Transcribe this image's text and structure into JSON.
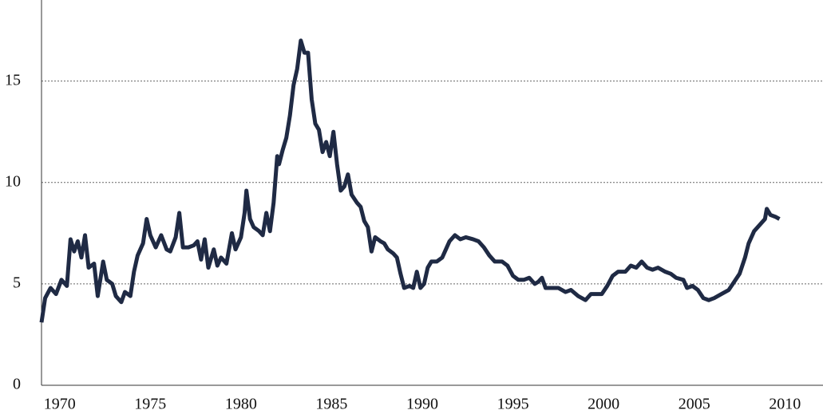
{
  "chart_data": {
    "type": "line",
    "x": [
      1969.0,
      1969.2,
      1969.5,
      1969.8,
      1970.1,
      1970.4,
      1970.6,
      1970.8,
      1971.0,
      1971.2,
      1971.4,
      1971.6,
      1971.9,
      1972.1,
      1972.4,
      1972.6,
      1972.9,
      1973.1,
      1973.4,
      1973.6,
      1973.9,
      1974.1,
      1974.3,
      1974.6,
      1974.8,
      1975.0,
      1975.3,
      1975.6,
      1975.9,
      1976.1,
      1976.4,
      1976.6,
      1976.8,
      1977.1,
      1977.4,
      1977.6,
      1977.8,
      1978.0,
      1978.2,
      1978.5,
      1978.7,
      1978.9,
      1979.2,
      1979.5,
      1979.7,
      1980.0,
      1980.2,
      1980.3,
      1980.5,
      1980.7,
      1981.0,
      1981.2,
      1981.4,
      1981.6,
      1981.8,
      1982.0,
      1982.1,
      1982.3,
      1982.5,
      1982.7,
      1982.9,
      1983.1,
      1983.3,
      1983.5,
      1983.7,
      1983.9,
      1984.1,
      1984.3,
      1984.5,
      1984.7,
      1984.9,
      1985.1,
      1985.3,
      1985.5,
      1985.7,
      1985.9,
      1986.1,
      1986.4,
      1986.6,
      1986.8,
      1987.0,
      1987.2,
      1987.4,
      1987.7,
      1987.9,
      1988.1,
      1988.4,
      1988.6,
      1988.8,
      1989.0,
      1989.3,
      1989.5,
      1989.7,
      1989.9,
      1990.1,
      1990.3,
      1990.5,
      1990.8,
      1991.1,
      1991.3,
      1991.5,
      1991.8,
      1992.1,
      1992.4,
      1992.8,
      1993.1,
      1993.4,
      1993.7,
      1994.0,
      1994.4,
      1994.7,
      1995.0,
      1995.3,
      1995.6,
      1995.9,
      1996.2,
      1996.4,
      1996.6,
      1996.8,
      1997.2,
      1997.5,
      1997.9,
      1998.2,
      1998.6,
      1999.0,
      1999.3,
      1999.6,
      1999.9,
      2000.2,
      2000.5,
      2000.8,
      2001.2,
      2001.5,
      2001.8,
      2002.1,
      2002.4,
      2002.7,
      2003.0,
      2003.4,
      2003.7,
      2004.0,
      2004.4,
      2004.6,
      2004.9,
      2005.2,
      2005.5,
      2005.8,
      2006.1,
      2006.5,
      2006.9,
      2007.2,
      2007.5,
      2007.8,
      2008.0,
      2008.3,
      2008.6,
      2008.9,
      2009.0,
      2009.2,
      2009.5,
      2009.7
    ],
    "series": [
      {
        "color": "#1f2a44",
        "values": [
          3.1,
          4.3,
          4.8,
          4.5,
          5.2,
          4.9,
          7.2,
          6.6,
          7.1,
          6.3,
          7.4,
          5.8,
          6.0,
          4.4,
          6.1,
          5.2,
          5.0,
          4.4,
          4.1,
          4.6,
          4.4,
          5.6,
          6.4,
          7.0,
          8.2,
          7.4,
          6.8,
          7.4,
          6.7,
          6.6,
          7.3,
          8.5,
          6.8,
          6.8,
          6.9,
          7.1,
          6.2,
          7.2,
          5.8,
          6.7,
          5.9,
          6.3,
          6.0,
          7.5,
          6.7,
          7.3,
          8.5,
          9.6,
          8.2,
          7.8,
          7.6,
          7.4,
          8.5,
          7.6,
          9.0,
          11.3,
          10.9,
          11.6,
          12.2,
          13.3,
          14.8,
          15.6,
          17.0,
          16.4,
          16.4,
          14.1,
          12.9,
          12.6,
          11.5,
          12.0,
          11.3,
          12.5,
          10.9,
          9.6,
          9.8,
          10.4,
          9.4,
          9.0,
          8.8,
          8.1,
          7.8,
          6.6,
          7.3,
          7.1,
          7.0,
          6.7,
          6.5,
          6.3,
          5.5,
          4.8,
          4.9,
          4.8,
          5.6,
          4.8,
          5.0,
          5.8,
          6.1,
          6.1,
          6.3,
          6.7,
          7.1,
          7.4,
          7.2,
          7.3,
          7.2,
          7.1,
          6.8,
          6.4,
          6.1,
          6.1,
          5.9,
          5.4,
          5.2,
          5.2,
          5.3,
          5.0,
          5.1,
          5.3,
          4.8,
          4.8,
          4.8,
          4.6,
          4.7,
          4.4,
          4.2,
          4.5,
          4.5,
          4.5,
          4.9,
          5.4,
          5.6,
          5.6,
          5.9,
          5.8,
          6.1,
          5.8,
          5.7,
          5.8,
          5.6,
          5.5,
          5.3,
          5.2,
          4.8,
          4.9,
          4.7,
          4.3,
          4.2,
          4.3,
          4.5,
          4.7,
          5.1,
          5.5,
          6.3,
          7.0,
          7.6,
          7.9,
          8.2,
          8.7,
          8.4,
          8.3,
          8.2
        ]
      }
    ],
    "xlim": [
      1969,
      2012.1
    ],
    "xticks": [
      1970,
      1975,
      1980,
      1985,
      1990,
      1995,
      2000,
      2005,
      2010
    ],
    "ylim": [
      0,
      19
    ],
    "yticks": [
      0,
      5,
      10,
      15
    ],
    "grid": true
  }
}
